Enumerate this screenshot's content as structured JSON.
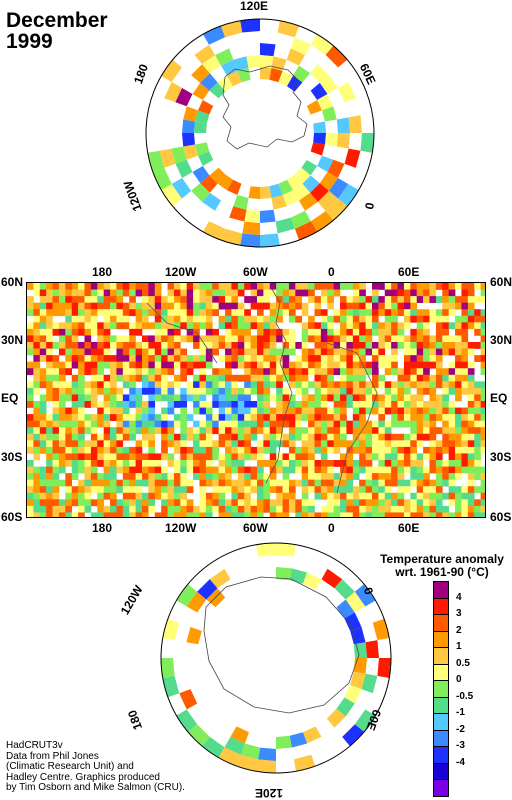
{
  "title": {
    "month": "December",
    "year": "1999"
  },
  "north_polar": {
    "labels": {
      "top": "120E",
      "right": "60E",
      "bottom": "0",
      "left_upper": "180",
      "left_lower": "120W"
    }
  },
  "main_map": {
    "lat_labels": [
      "60N",
      "30N",
      "EQ",
      "30S",
      "60S"
    ],
    "lon_labels": [
      "180",
      "120W",
      "60W",
      "0",
      "60E"
    ]
  },
  "south_polar": {
    "labels": {
      "upper_left": "120W",
      "right": "0",
      "lower_right": "60E",
      "bottom": "120E",
      "lower_left": "180"
    }
  },
  "legend": {
    "title": "Temperature anomaly",
    "subtitle": "wrt. 1961-90  (°C)",
    "levels": [
      "4",
      "3",
      "2",
      "1",
      "0.5",
      "0",
      "-0.5",
      "-1",
      "-2",
      "-3",
      "-4"
    ],
    "colors": [
      "#a0007f",
      "#ff1a00",
      "#ff5a00",
      "#ff9a00",
      "#ffc840",
      "#ffff7a",
      "#7fee5a",
      "#54dc8c",
      "#55c8ff",
      "#3b8aff",
      "#1e32ff",
      "#1a00d8",
      "#7a00e6"
    ]
  },
  "credits": {
    "line1": "HadCRUT3v",
    "line2": "Data from Phil Jones",
    "line3": "(Climatic Research Unit) and",
    "line4": "Hadley Centre.  Graphics produced",
    "line5": "by Tim Osborn and Mike Salmon (CRU)."
  }
}
